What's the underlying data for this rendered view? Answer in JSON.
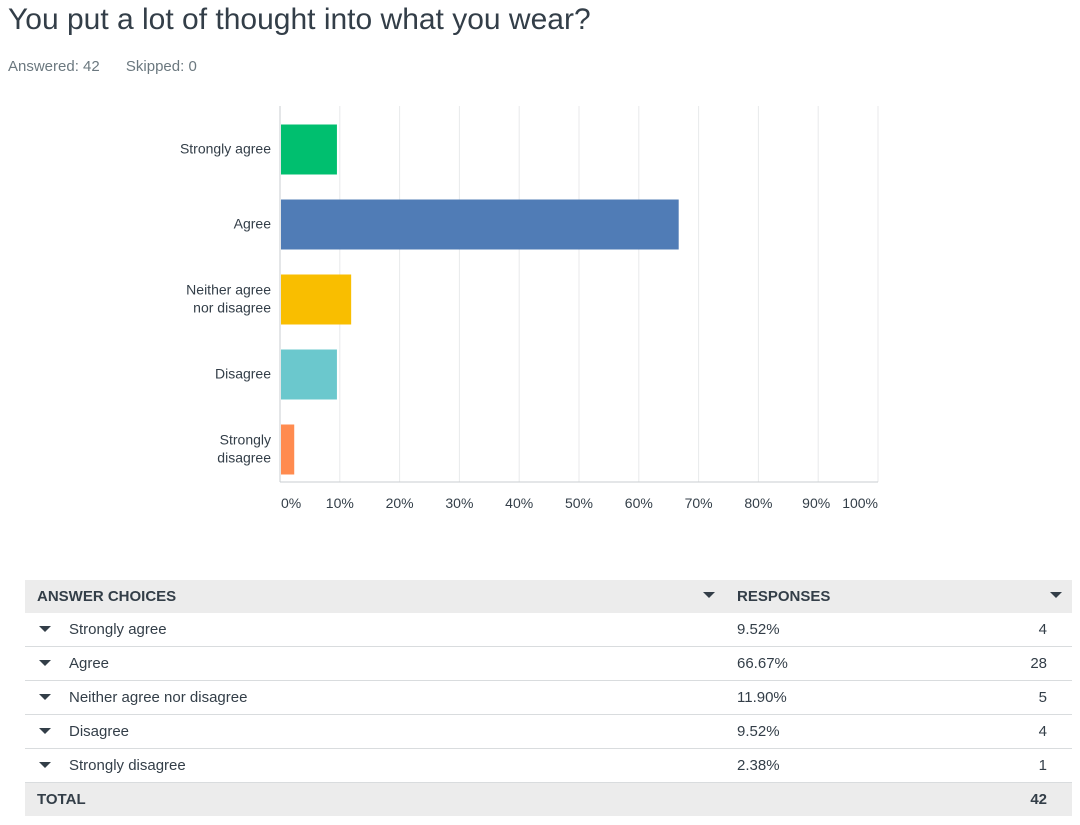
{
  "header": {
    "title": "You put a lot of thought into what you wear?",
    "answered": "Answered: 42",
    "skipped": "Skipped: 0"
  },
  "chart_data": {
    "type": "bar",
    "orientation": "horizontal",
    "categories": [
      [
        "Strongly agree"
      ],
      [
        "Agree"
      ],
      [
        "Neither agree",
        "nor disagree"
      ],
      [
        "Disagree"
      ],
      [
        "Strongly",
        "disagree"
      ]
    ],
    "values": [
      9.52,
      66.67,
      11.9,
      9.52,
      2.38
    ],
    "colors": [
      "#00bf6f",
      "#507cb6",
      "#f9be00",
      "#6bc8cd",
      "#ff8b4f"
    ],
    "xlim": [
      0,
      100
    ],
    "ticks": [
      "0%",
      "10%",
      "20%",
      "30%",
      "40%",
      "50%",
      "60%",
      "70%",
      "80%",
      "90%",
      "100%"
    ],
    "grid": true
  },
  "table": {
    "col_choices": "ANSWER CHOICES",
    "col_responses": "RESPONSES",
    "rows": [
      {
        "choice": "Strongly agree",
        "percent": "9.52%",
        "count": "4"
      },
      {
        "choice": "Agree",
        "percent": "66.67%",
        "count": "28"
      },
      {
        "choice": "Neither agree nor disagree",
        "percent": "11.90%",
        "count": "5"
      },
      {
        "choice": "Disagree",
        "percent": "9.52%",
        "count": "4"
      },
      {
        "choice": "Strongly disagree",
        "percent": "2.38%",
        "count": "1"
      }
    ],
    "total_label": "TOTAL",
    "total_value": "42"
  }
}
